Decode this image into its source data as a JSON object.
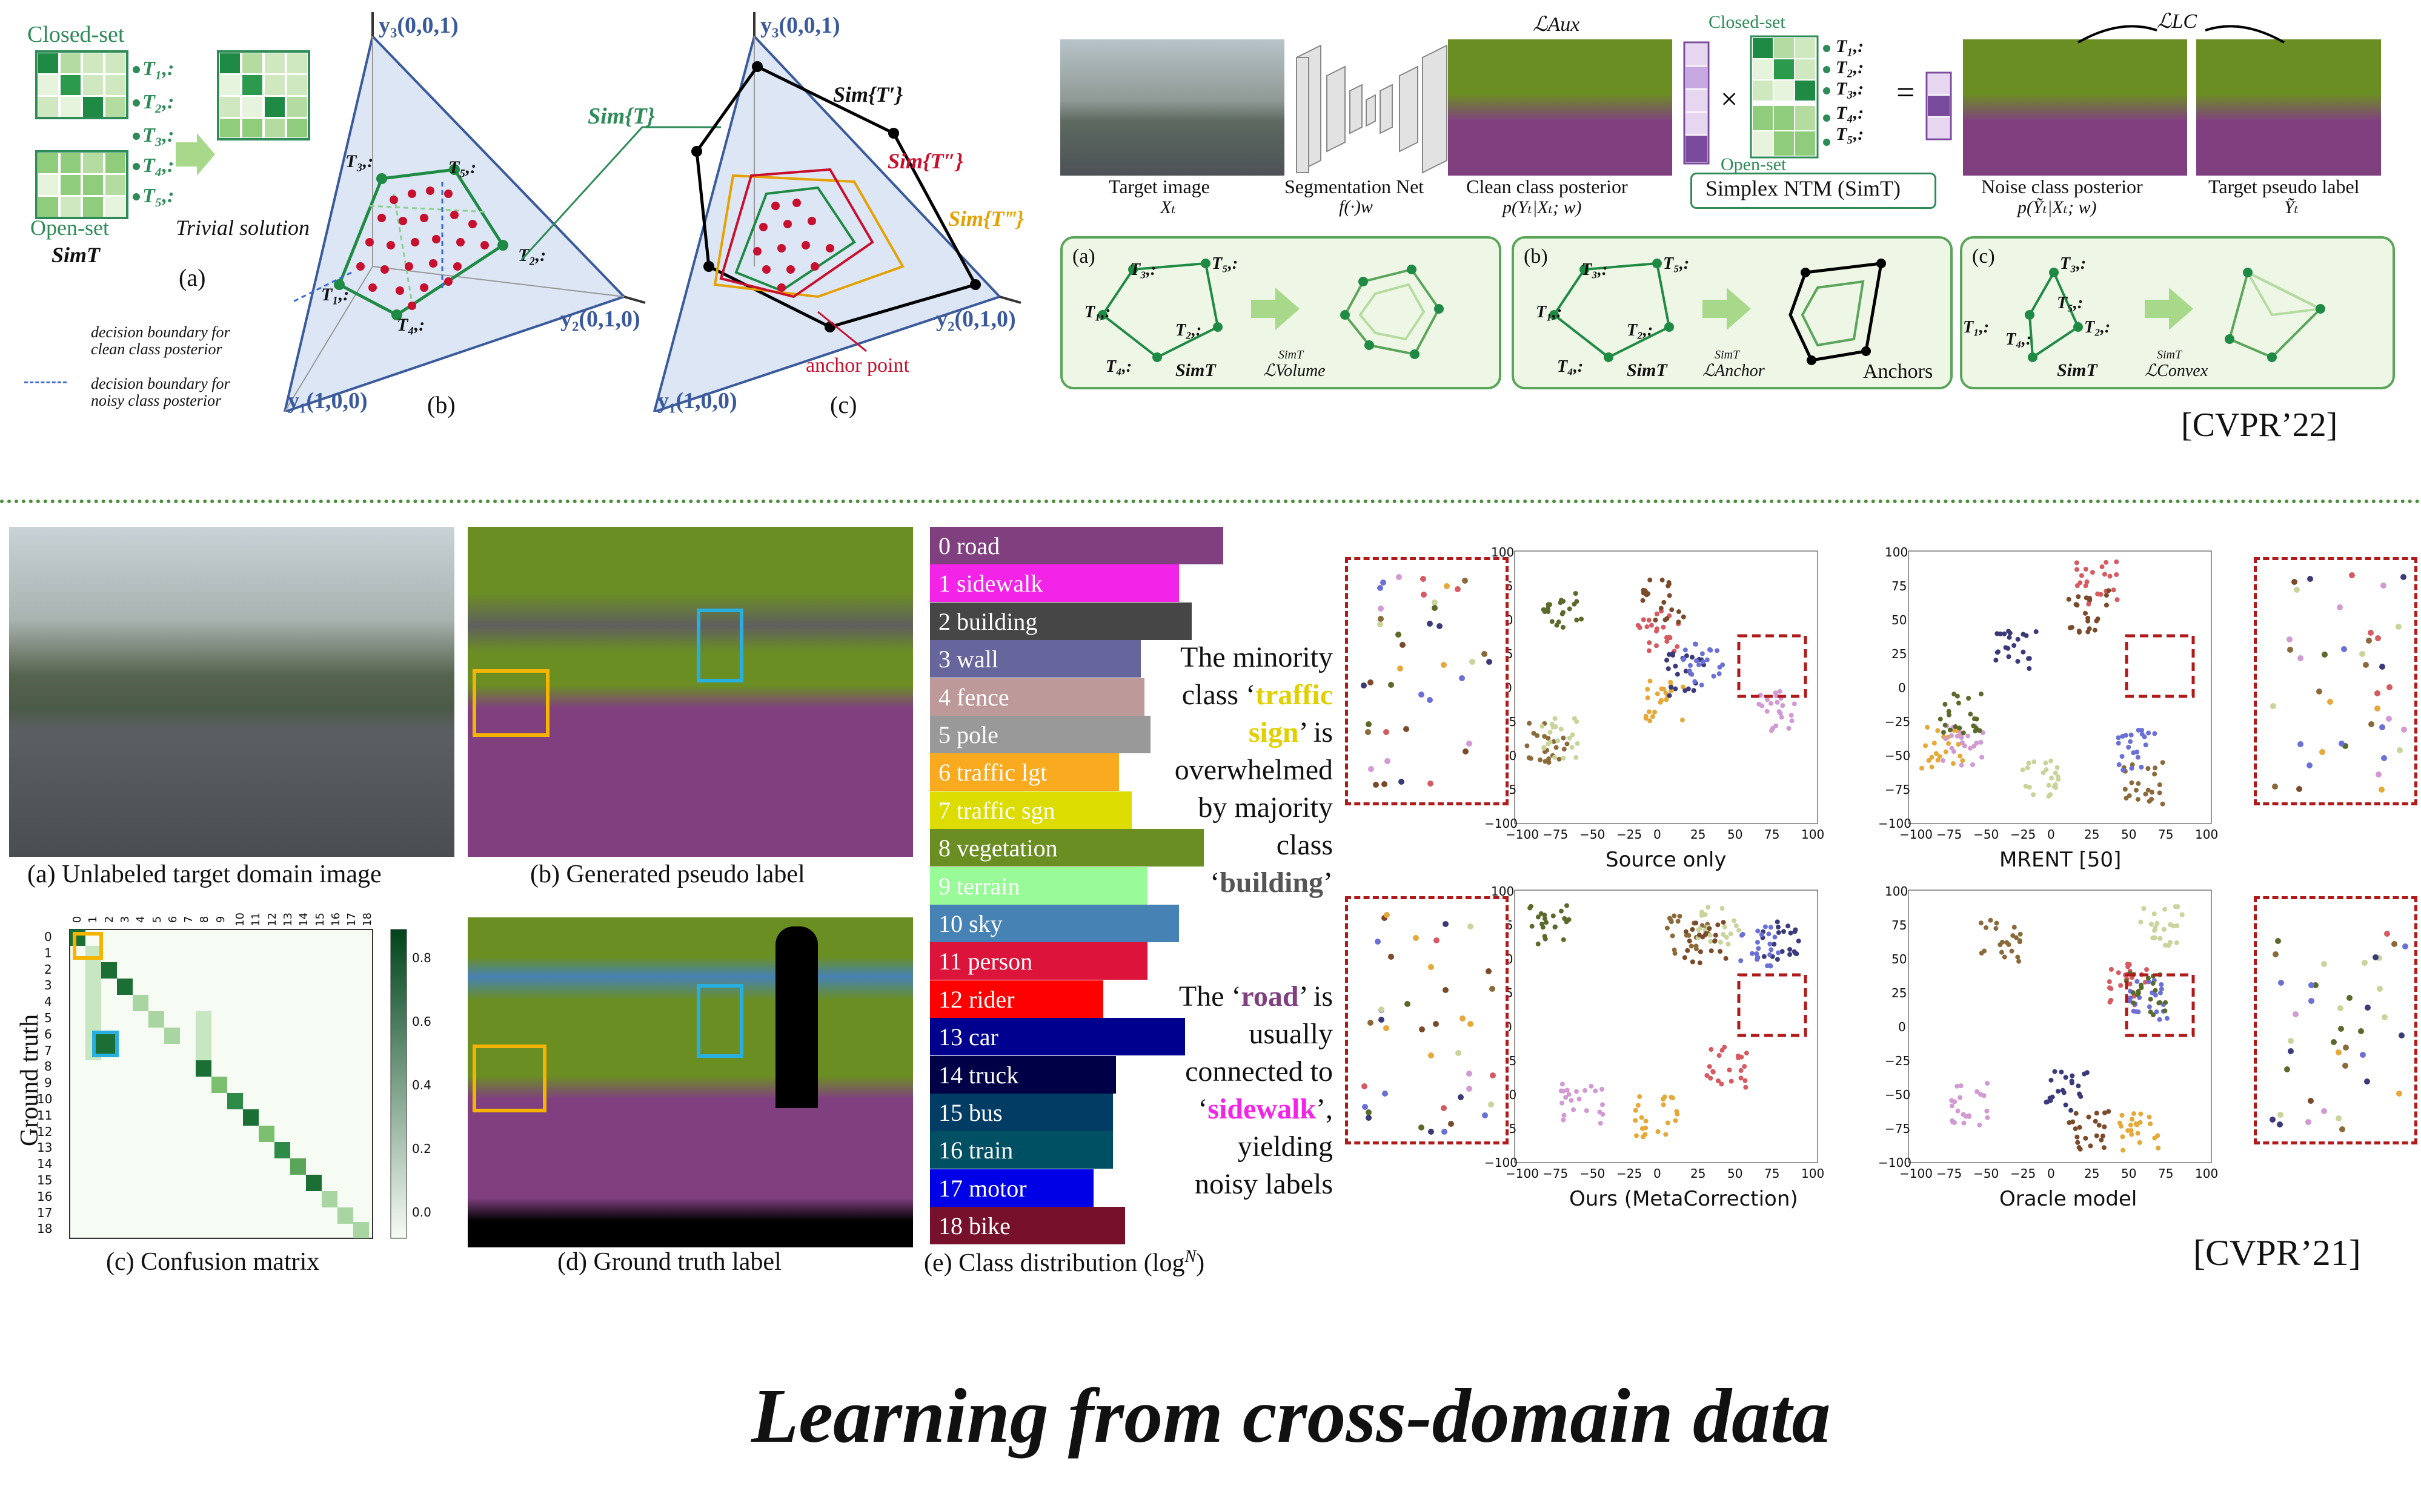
{
  "top_left": {
    "closed_set": "Closed-set",
    "open_set": "Open-set",
    "simt": "SimT",
    "trivial_solution": "Trivial solution",
    "a_label": "(a)",
    "b_label": "(b)",
    "c_label": "(c)",
    "t_labels": [
      "T₁,:",
      "T₂,:",
      "T₃,:",
      "T₄,:",
      "T₅,:"
    ],
    "legend_clean": "decision boundary for clean class posterior",
    "legend_noisy": "decision boundary for noisy class posterior",
    "y3": "y₃(0,0,1)",
    "y2": "y₂(0,1,0)",
    "y1": "y₁(1,0,0)",
    "sim_t": "Sim{T}",
    "sim_t1": "Sim{T′}",
    "sim_t2": "Sim{T″}",
    "sim_t3": "Sim{T‴}",
    "anchor_point": "anchor point"
  },
  "top_right": {
    "target_image": "Target image",
    "target_image_sym": "Xₜ",
    "seg_net": "Segmentation Net",
    "seg_net_sym": "f(·)w",
    "clean_posterior": "Clean class posterior",
    "clean_posterior_sym": "p(Yₜ|Xₜ; w)",
    "l_aux": "ℒAux",
    "closed_set": "Closed-set",
    "open_set": "Open-set",
    "noise_posterior": "Noise class posterior",
    "noise_posterior_sym": "p(Ỹₜ|Xₜ; w)",
    "target_pseudo": "Target pseudo label",
    "target_pseudo_sym": "Ỹₜ",
    "l_lc": "ℒLC",
    "simplex_ntm": "Simplex NTM (SimT)",
    "panel_a": "(a)",
    "panel_b": "(b)",
    "panel_c": "(c)",
    "loss_volume": "ℒVolume",
    "loss_anchor": "ℒAnchor",
    "loss_convex": "ℒConvex",
    "loss_sup": "SimT",
    "simt": "SimT",
    "anchors": "Anchors",
    "venue": "[CVPR’22]"
  },
  "bottom": {
    "cap_a": "(a) Unlabeled target domain image",
    "cap_b": "(b) Generated pseudo label",
    "cap_c": "(c) Confusion matrix",
    "cap_d": "(d) Ground truth label",
    "cap_e": "(e) Class distribution (log",
    "cap_e_sup": "N",
    "cap_e_close": ")",
    "ground_truth": "Ground truth",
    "cm_ticks": [
      "0",
      "1",
      "2",
      "3",
      "4",
      "5",
      "6",
      "7",
      "8",
      "9",
      "10",
      "11",
      "12",
      "13",
      "14",
      "15",
      "16",
      "17",
      "18"
    ],
    "cm_colorbar": [
      "0.8",
      "0.6",
      "0.4",
      "0.2",
      "0.0"
    ],
    "note1_a": "The minority",
    "note1_b": "class ‘",
    "note1_c": "traffic",
    "note1_d": "sign",
    "note1_e": "’ is",
    "note1_f": "overwhelmed",
    "note1_g": "by majority",
    "note1_h": "class",
    "note1_i": "‘",
    "note1_j": "building",
    "note1_k": "’",
    "note2_a": "The ‘",
    "note2_b": "road",
    "note2_c": "’ is",
    "note2_d": "usually",
    "note2_e": "connected to",
    "note2_f": "‘",
    "note2_g": "sidewalk",
    "note2_h": "’,",
    "note2_i": "yielding",
    "note2_j": "noisy labels",
    "tsne_labels": [
      "Source only",
      "MRENT [50]",
      "Ours (MetaCorrection)",
      "Oracle model"
    ],
    "tsne_xticks": [
      "−100",
      "−75",
      "−50",
      "−25",
      "0",
      "25",
      "50",
      "75",
      "100"
    ],
    "tsne_yticks": [
      "100",
      "75",
      "50",
      "25",
      "0",
      "−25",
      "−50",
      "−75",
      "−100"
    ],
    "venue": "[CVPR’21]"
  },
  "classes": [
    {
      "label": "0 road",
      "color": "#804080",
      "value": 0.93
    },
    {
      "label": "1 sidewalk",
      "color": "#f423e8",
      "value": 0.79
    },
    {
      "label": "2 building",
      "color": "#464646",
      "value": 0.83
    },
    {
      "label": "3 wall",
      "color": "#66669c",
      "value": 0.67
    },
    {
      "label": "4 fence",
      "color": "#be9999",
      "value": 0.68
    },
    {
      "label": "5 pole",
      "color": "#999999",
      "value": 0.7
    },
    {
      "label": "6 traffic lgt",
      "color": "#faaa1e",
      "value": 0.6
    },
    {
      "label": "7 traffic sgn",
      "color": "#dcdc00",
      "value": 0.64
    },
    {
      "label": "8 vegetation",
      "color": "#6b8e23",
      "value": 0.87
    },
    {
      "label": "9 terrain",
      "color": "#98fb98",
      "value": 0.69
    },
    {
      "label": "10 sky",
      "color": "#4682b4",
      "value": 0.79
    },
    {
      "label": "11 person",
      "color": "#dc143c",
      "value": 0.69
    },
    {
      "label": "12 rider",
      "color": "#ff0000",
      "value": 0.55
    },
    {
      "label": "13 car",
      "color": "#00008e",
      "value": 0.81
    },
    {
      "label": "14 truck",
      "color": "#000046",
      "value": 0.59
    },
    {
      "label": "15 bus",
      "color": "#003c64",
      "value": 0.58
    },
    {
      "label": "16 train",
      "color": "#005064",
      "value": 0.58
    },
    {
      "label": "17 motor",
      "color": "#0000e6",
      "value": 0.52
    },
    {
      "label": "18 bike",
      "color": "#77112b",
      "value": 0.62
    }
  ],
  "footer_title": "Learning from cross-domain data"
}
